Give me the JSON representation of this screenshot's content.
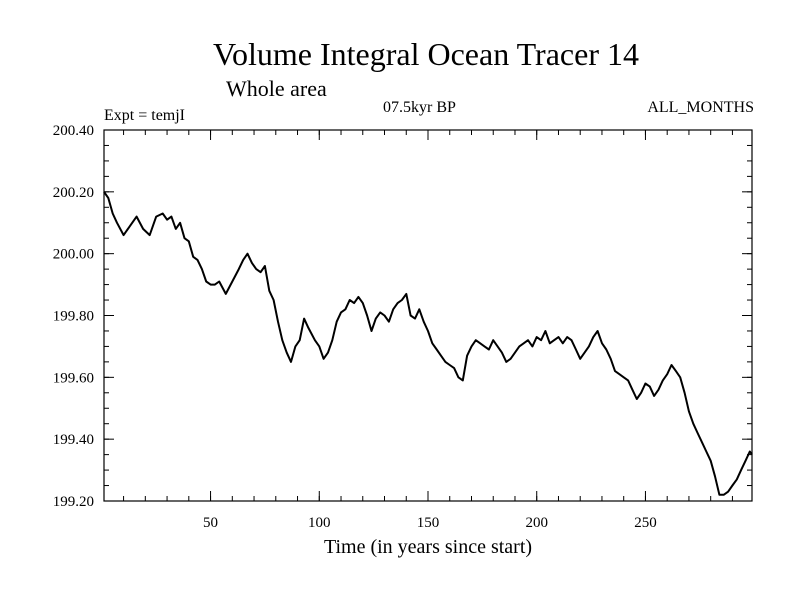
{
  "chart_data": {
    "type": "line",
    "title": "Volume Integral Ocean Tracer 14",
    "subtitle": "Whole area",
    "annotations": {
      "experiment": "Expt = temjI",
      "period": "07.5kyr BP",
      "months": "ALL_MONTHS"
    },
    "xlabel": "Time (in years since start)",
    "ylabel": "",
    "xlim": [
      1,
      299
    ],
    "ylim": [
      199.2,
      200.4
    ],
    "x_ticks": [
      50,
      100,
      150,
      200,
      250
    ],
    "y_ticks": [
      "200.40",
      "200.20",
      "200.00",
      "199.80",
      "199.60",
      "199.40",
      "199.20"
    ],
    "grid": false,
    "series": [
      {
        "x": [
          1,
          3,
          5,
          7,
          10,
          13,
          16,
          19,
          22,
          25,
          28,
          30,
          32,
          34,
          36,
          38,
          40,
          42,
          44,
          46,
          48,
          50,
          52,
          54,
          57,
          60,
          63,
          65,
          67,
          69,
          71,
          73,
          75,
          77,
          79,
          81,
          83,
          85,
          87,
          89,
          91,
          93,
          95,
          98,
          100,
          102,
          104,
          106,
          108,
          110,
          112,
          114,
          116,
          118,
          120,
          122,
          124,
          126,
          128,
          130,
          132,
          134,
          136,
          138,
          140,
          142,
          144,
          146,
          148,
          150,
          152,
          154,
          156,
          158,
          160,
          162,
          164,
          166,
          168,
          170,
          172,
          174,
          176,
          178,
          180,
          182,
          184,
          186,
          188,
          190,
          192,
          194,
          196,
          198,
          200,
          202,
          204,
          206,
          208,
          210,
          212,
          214,
          216,
          218,
          220,
          222,
          224,
          226,
          228,
          230,
          232,
          234,
          236,
          238,
          240,
          242,
          244,
          246,
          248,
          250,
          252,
          254,
          256,
          258,
          260,
          262,
          264,
          266,
          268,
          270,
          272,
          274,
          276,
          278,
          280,
          282,
          284,
          286,
          288,
          290,
          292,
          294,
          296,
          298,
          299
        ],
        "y": [
          200.2,
          200.18,
          200.13,
          200.1,
          200.06,
          200.09,
          200.12,
          200.08,
          200.06,
          200.12,
          200.13,
          200.11,
          200.12,
          200.08,
          200.1,
          200.05,
          200.04,
          199.99,
          199.98,
          199.95,
          199.91,
          199.9,
          199.9,
          199.91,
          199.87,
          199.91,
          199.95,
          199.98,
          200.0,
          199.97,
          199.95,
          199.94,
          199.96,
          199.88,
          199.85,
          199.78,
          199.72,
          199.68,
          199.65,
          199.7,
          199.72,
          199.79,
          199.76,
          199.72,
          199.7,
          199.66,
          199.68,
          199.72,
          199.78,
          199.81,
          199.82,
          199.85,
          199.84,
          199.86,
          199.84,
          199.8,
          199.75,
          199.79,
          199.81,
          199.8,
          199.78,
          199.82,
          199.84,
          199.85,
          199.87,
          199.8,
          199.79,
          199.82,
          199.78,
          199.75,
          199.71,
          199.69,
          199.67,
          199.65,
          199.64,
          199.63,
          199.6,
          199.59,
          199.67,
          199.7,
          199.72,
          199.71,
          199.7,
          199.69,
          199.72,
          199.7,
          199.68,
          199.65,
          199.66,
          199.68,
          199.7,
          199.71,
          199.72,
          199.7,
          199.73,
          199.72,
          199.75,
          199.71,
          199.72,
          199.73,
          199.71,
          199.73,
          199.72,
          199.69,
          199.66,
          199.68,
          199.7,
          199.73,
          199.75,
          199.71,
          199.69,
          199.66,
          199.62,
          199.61,
          199.6,
          199.59,
          199.56,
          199.53,
          199.55,
          199.58,
          199.57,
          199.54,
          199.56,
          199.59,
          199.61,
          199.64,
          199.62,
          199.6,
          199.55,
          199.49,
          199.45,
          199.42,
          199.39,
          199.36,
          199.33,
          199.28,
          199.22,
          199.22,
          199.23,
          199.25,
          199.27,
          199.3,
          199.33,
          199.36,
          199.35
        ]
      }
    ]
  }
}
